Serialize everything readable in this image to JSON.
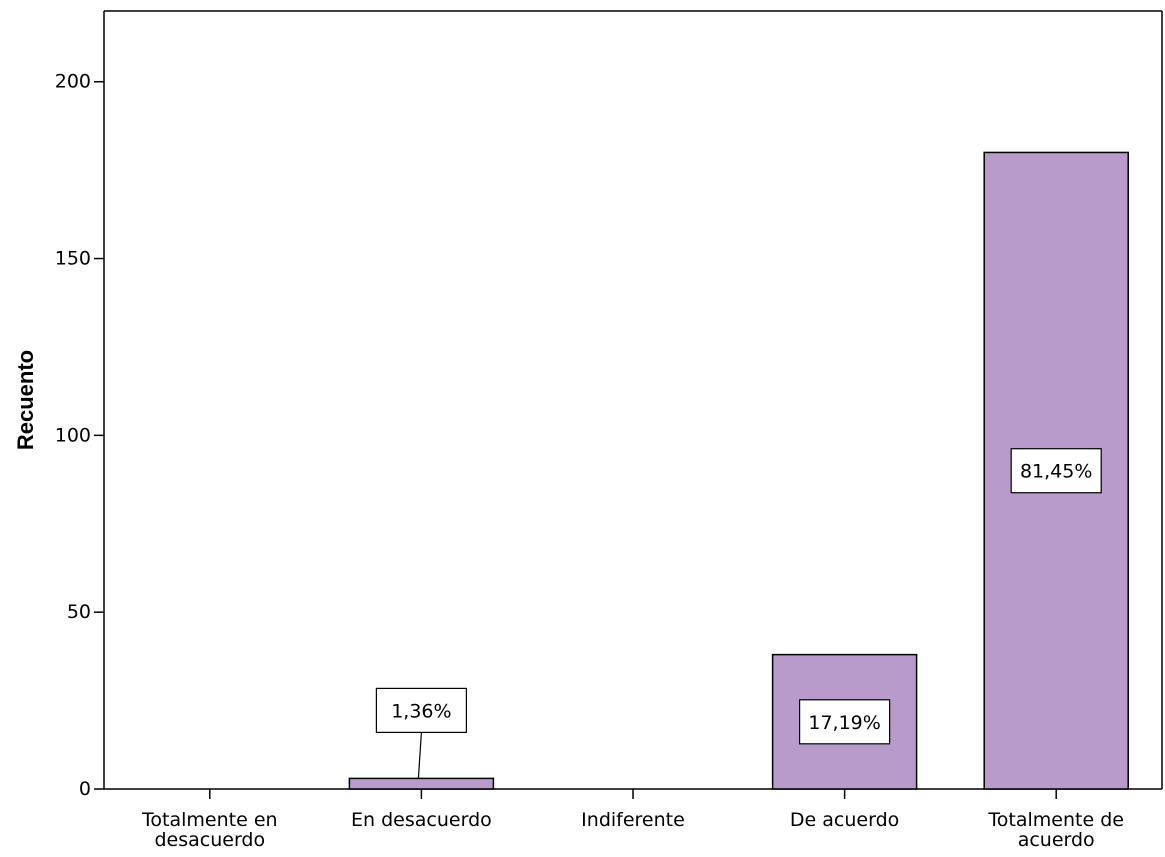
{
  "chart_data": {
    "type": "bar",
    "title": "",
    "xlabel": "",
    "ylabel": "Recuento",
    "categories": [
      [
        "Totalmente en",
        "desacuerdo"
      ],
      [
        "En desacuerdo"
      ],
      [
        "Indiferente"
      ],
      [
        "De acuerdo"
      ],
      [
        "Totalmente de",
        "acuerdo"
      ]
    ],
    "values": [
      0,
      3,
      0,
      38,
      180
    ],
    "data_labels": [
      "",
      "1,36%",
      "",
      "17,19%",
      "81,45%"
    ],
    "ylim": [
      0,
      220
    ],
    "yticks": [
      0,
      50,
      100,
      150,
      200
    ],
    "ytick_labels": [
      "0",
      "50",
      "100",
      "150",
      "200"
    ],
    "grid": false,
    "legend": "none",
    "colors": {
      "bar_fill": "#B89ACB",
      "bar_stroke": "#000000",
      "axis": "#000000",
      "frame": "#000000",
      "label_box_fill": "#ffffff"
    }
  }
}
